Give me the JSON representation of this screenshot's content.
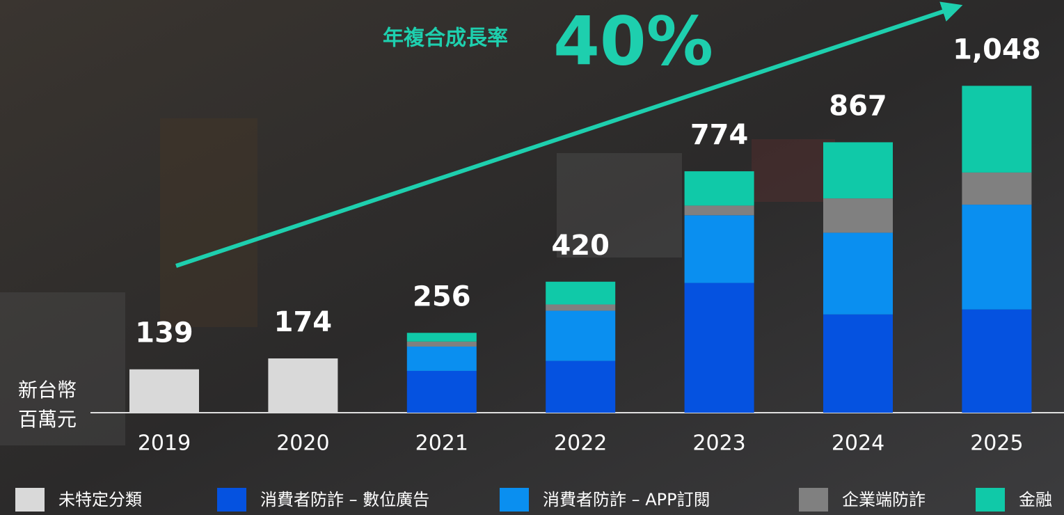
{
  "chart_data": {
    "type": "stacked_bar",
    "categories": [
      "2019",
      "2020",
      "2021",
      "2022",
      "2023",
      "2024",
      "2025"
    ],
    "series": [
      {
        "name": "未特定分類",
        "color": "#d9d9d9",
        "values": [
          139,
          174,
          null,
          null,
          null,
          null,
          null
        ]
      },
      {
        "name": "消費者防詐 – 數位廣告",
        "color": "#0552e0",
        "values": [
          null,
          null,
          134,
          166,
          416,
          315,
          331
        ]
      },
      {
        "name": "消費者防詐 – APP訂閱",
        "color": "#0a8ff0",
        "values": [
          null,
          null,
          78,
          161,
          217,
          262,
          336
        ]
      },
      {
        "name": "企業端防詐",
        "color": "#808080",
        "values": [
          null,
          null,
          16,
          20,
          31,
          110,
          103
        ]
      },
      {
        "name": "金融",
        "color": "#10c9a8",
        "values": [
          null,
          null,
          28,
          73,
          110,
          180,
          278
        ]
      }
    ],
    "totals": [
      139,
      174,
      256,
      420,
      774,
      867,
      1048
    ],
    "total_labels": [
      "139",
      "174",
      "256",
      "420",
      "774",
      "867",
      "1,048"
    ],
    "y_label": [
      "新台幣",
      "百萬元"
    ],
    "annotation": {
      "text": "年複合成長率",
      "value": "40%"
    },
    "ylim": [
      0,
      1100
    ]
  }
}
